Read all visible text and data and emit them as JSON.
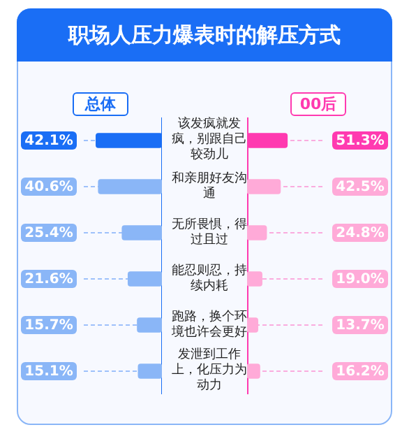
{
  "chart_data": [
    {
      "type": "bar",
      "orientation": "horizontal",
      "title": "职场人压力爆表时的解压方式",
      "legend": "top",
      "grid": "y",
      "categories": [
        "该发疯就发疯，别跟自己较劲儿",
        "和亲朋好友沟通",
        "无所畏惧，得过且过",
        "能忍则忍，持续内耗",
        "跑路，换个环境也许会更好",
        "发泄到工作上，化压力为动力"
      ],
      "series": [
        {
          "name": "总体",
          "color": "#1a6ef5",
          "colors": [
            "#1a6ef5",
            "#8ab6f7",
            "#8ab6f7",
            "#8ab6f7",
            "#8ab6f7",
            "#8ab6f7"
          ],
          "values": [
            42.1,
            40.6,
            25.4,
            21.6,
            15.7,
            15.1
          ],
          "value_labels": [
            "42.1%",
            "40.6%",
            "25.4%",
            "21.6%",
            "15.7%",
            "15.1%"
          ]
        }
      ]
    },
    {
      "type": "bar",
      "orientation": "horizontal",
      "legend": "top",
      "grid": "y",
      "categories": [
        null,
        null,
        null,
        null,
        null,
        null
      ],
      "series": [
        {
          "name": "00后",
          "color": "#ff3ab0",
          "colors": [
            "#ff3ab0",
            "#ffaad8",
            "#ffaad8",
            "#ffaad8",
            "#ffaad8",
            "#ffaad8"
          ],
          "values": [
            51.3,
            42.5,
            24.8,
            19.0,
            13.7,
            16.2
          ],
          "value_labels": [
            "51.3%",
            "42.5%",
            "24.8%",
            "19.0%",
            "13.7%",
            "16.2%"
          ]
        }
      ]
    }
  ]
}
